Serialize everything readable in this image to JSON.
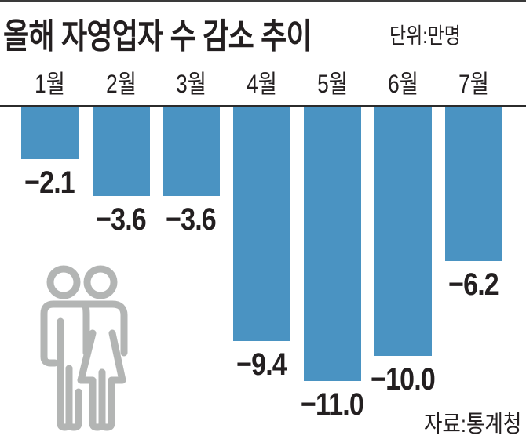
{
  "title": "올해 자영업자 수 감소 추이",
  "unit": "단위:만명",
  "source": "자료:통계청",
  "colors": {
    "bar": "#4a93c2",
    "icon": "#b3b5b4",
    "text": "#231f20"
  },
  "chart_data": {
    "type": "bar",
    "title": "올해 자영업자 수 감소 추이",
    "unit": "단위:만명",
    "categories": [
      "1월",
      "2월",
      "3월",
      "4월",
      "5월",
      "6월",
      "7월"
    ],
    "values": [
      -2.1,
      -3.6,
      -3.6,
      -9.4,
      -11.0,
      -10.0,
      -6.2
    ],
    "labels": [
      "−2.1",
      "−3.6",
      "−3.6",
      "−9.4",
      "−11.0",
      "−10.0",
      "−6.2"
    ],
    "xlabel": "",
    "ylabel": "",
    "ylim": [
      -11.0,
      0
    ],
    "grid": false,
    "legend": null,
    "source": "자료:통계청"
  }
}
